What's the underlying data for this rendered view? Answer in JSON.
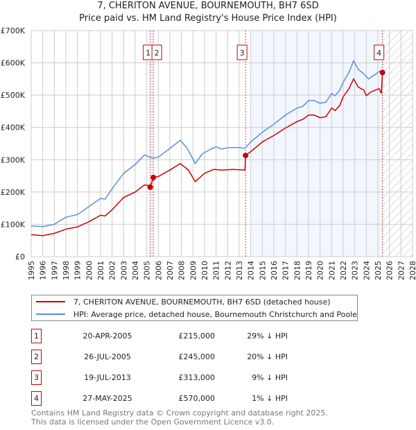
{
  "title": "7, CHERITON AVENUE, BOURNEMOUTH, BH7 6SD",
  "subtitle": "Price paid vs. HM Land Registry's House Price Index (HPI)",
  "chart_data": {
    "type": "line",
    "title": "7, CHERITON AVENUE, BOURNEMOUTH, BH7 6SD",
    "subtitle": "Price paid vs. HM Land Registry's House Price Index (HPI)",
    "xlim": [
      1995,
      2028
    ],
    "ylim": [
      0,
      700000
    ],
    "x_ticks": [
      "1995",
      "1996",
      "1997",
      "1998",
      "1999",
      "2000",
      "2001",
      "2002",
      "2003",
      "2004",
      "2005",
      "2006",
      "2007",
      "2008",
      "2009",
      "2010",
      "2011",
      "2012",
      "2013",
      "2014",
      "2015",
      "2016",
      "2017",
      "2018",
      "2019",
      "2020",
      "2021",
      "2022",
      "2023",
      "2024",
      "2025",
      "2026",
      "2027",
      "2028"
    ],
    "y_ticks": [
      {
        "v": 0,
        "label": "£0"
      },
      {
        "v": 100000,
        "label": "£100K"
      },
      {
        "v": 200000,
        "label": "£200K"
      },
      {
        "v": 300000,
        "label": "£300K"
      },
      {
        "v": 400000,
        "label": "£400K"
      },
      {
        "v": 500000,
        "label": "£500K"
      },
      {
        "v": 600000,
        "label": "£600K"
      },
      {
        "v": 700000,
        "label": "£700K"
      }
    ],
    "grid": true,
    "legend_placement": "below",
    "series": [
      {
        "name": "7, CHERITON AVENUE, BOURNEMOUTH, BH7 6SD (detached house)",
        "color": "#cc0000",
        "x": [
          1995,
          1996,
          1997,
          1998,
          1999,
          2000,
          2001,
          2001.4,
          2002,
          2003,
          2004,
          2004.8,
          2005.2,
          2005.3,
          2005.57,
          2006,
          2007,
          2007.9,
          2008.6,
          2009.2,
          2010,
          2010.8,
          2011.5,
          2012.5,
          2013.5,
          2013.55,
          2014,
          2015,
          2016,
          2017,
          2018,
          2018.5,
          2019,
          2019.5,
          2020,
          2020.5,
          2021,
          2021.3,
          2021.7,
          2022,
          2022.5,
          2022.9,
          2023.3,
          2023.8,
          2024,
          2024.4,
          2025.1,
          2025.3,
          2025.4
        ],
        "y": [
          68000,
          65000,
          72000,
          85000,
          92000,
          108000,
          128000,
          126000,
          145000,
          183000,
          200000,
          222000,
          220000,
          215000,
          245000,
          248000,
          268000,
          288000,
          268000,
          232000,
          258000,
          270000,
          268000,
          270000,
          268000,
          313000,
          325000,
          355000,
          375000,
          398000,
          418000,
          425000,
          438000,
          438000,
          430000,
          433000,
          460000,
          452000,
          468000,
          495000,
          520000,
          550000,
          525000,
          515000,
          498000,
          510000,
          520000,
          505000,
          570000
        ]
      },
      {
        "name": "HPI: Average price, detached house, Bournemouth Christchurch and Poole",
        "color": "#5b8fd6",
        "x": [
          1995,
          1996,
          1997,
          1998,
          1999,
          2000,
          2001,
          2001.4,
          2002,
          2003,
          2004,
          2004.8,
          2005.5,
          2006,
          2007,
          2007.9,
          2008.5,
          2009.2,
          2009.8,
          2010.5,
          2011,
          2011.5,
          2012,
          2013,
          2013.5,
          2014,
          2015,
          2016,
          2017,
          2018,
          2018.5,
          2019,
          2019.5,
          2020,
          2020.5,
          2021,
          2021.3,
          2021.7,
          2022,
          2022.5,
          2022.9,
          2023.3,
          2023.8,
          2024.2,
          2024.6,
          2025.2,
          2025.4
        ],
        "y": [
          95000,
          93000,
          100000,
          122000,
          130000,
          155000,
          180000,
          178000,
          210000,
          258000,
          285000,
          315000,
          305000,
          308000,
          335000,
          360000,
          335000,
          288000,
          318000,
          332000,
          340000,
          333000,
          337000,
          338000,
          335000,
          355000,
          385000,
          410000,
          438000,
          460000,
          465000,
          483000,
          483000,
          475000,
          478000,
          505000,
          498000,
          515000,
          540000,
          570000,
          606000,
          580000,
          565000,
          550000,
          560000,
          575000,
          560000
        ]
      }
    ],
    "sales": [
      {
        "n": "1",
        "x": 2005.3,
        "y": 215000,
        "date": "20-APR-2005",
        "price": "£215,000",
        "hpi": "29% ↓ HPI"
      },
      {
        "n": "2",
        "x": 2005.57,
        "y": 245000,
        "date": "26-JUL-2005",
        "price": "£245,000",
        "hpi": "20% ↓ HPI"
      },
      {
        "n": "3",
        "x": 2013.55,
        "y": 313000,
        "date": "19-JUL-2013",
        "price": "£313,000",
        "hpi": "9% ↓ HPI"
      },
      {
        "n": "4",
        "x": 2025.4,
        "y": 570000,
        "date": "27-MAY-2025",
        "price": "£570,000",
        "hpi": "1% ↓ HPI"
      }
    ]
  },
  "footer": [
    "Contains HM Land Registry data © Crown copyright and database right 2025.",
    "This data is licensed under the Open Government Licence v3.0."
  ]
}
